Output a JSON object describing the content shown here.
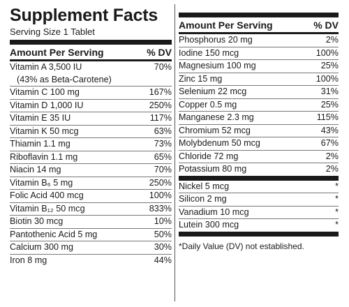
{
  "title": "Supplement Facts",
  "serving": "Serving Size 1 Tablet",
  "header": {
    "amount": "Amount Per Serving",
    "dv": "% DV"
  },
  "left_rows": [
    {
      "name": "Vitamin A 3,500 IU",
      "name2": "(43% as Beta-Carotene)",
      "dv": "70%"
    },
    {
      "name": "Vitamin C 100 mg",
      "dv": "167%"
    },
    {
      "name": "Vitamin D 1,000 IU",
      "dv": "250%"
    },
    {
      "name": "Vitamin E 35 IU",
      "dv": "117%"
    },
    {
      "name": "Vitamin K 50 mcg",
      "dv": "63%"
    },
    {
      "name": "Thiamin 1.1 mg",
      "dv": "73%"
    },
    {
      "name": "Riboflavin 1.1 mg",
      "dv": "65%"
    },
    {
      "name": "Niacin 14 mg",
      "dv": "70%"
    },
    {
      "name": "Vitamin B₆ 5 mg",
      "dv": "250%"
    },
    {
      "name": "Folic Acid 400 mcg",
      "dv": "100%"
    },
    {
      "name": "Vitamin B₁₂ 50 mcg",
      "dv": "833%"
    },
    {
      "name": "Biotin 30 mcg",
      "dv": "10%"
    },
    {
      "name": "Pantothenic Acid 5 mg",
      "dv": "50%"
    },
    {
      "name": "Calcium 300 mg",
      "dv": "30%"
    },
    {
      "name": "Iron 8 mg",
      "dv": "44%"
    }
  ],
  "right_rows": [
    {
      "name": "Phosphorus 20 mg",
      "dv": "2%"
    },
    {
      "name": "Iodine 150 mcg",
      "dv": "100%"
    },
    {
      "name": "Magnesium 100 mg",
      "dv": "25%"
    },
    {
      "name": "Zinc 15 mg",
      "dv": "100%"
    },
    {
      "name": "Selenium 22 mcg",
      "dv": "31%"
    },
    {
      "name": "Copper 0.5 mg",
      "dv": "25%"
    },
    {
      "name": "Manganese 2.3 mg",
      "dv": "115%"
    },
    {
      "name": "Chromium 52 mcg",
      "dv": "43%"
    },
    {
      "name": "Molybdenum 50 mcg",
      "dv": "67%"
    },
    {
      "name": "Chloride 72 mg",
      "dv": "2%"
    },
    {
      "name": "Potassium 80 mg",
      "dv": "2%"
    }
  ],
  "right_rows2": [
    {
      "name": "Nickel 5 mcg",
      "dv": "*"
    },
    {
      "name": "Silicon 2 mg",
      "dv": "*"
    },
    {
      "name": "Vanadium 10 mcg",
      "dv": "*"
    },
    {
      "name": "Lutein 300 mcg",
      "dv": "*"
    }
  ],
  "footnote": "*Daily Value (DV) not established."
}
